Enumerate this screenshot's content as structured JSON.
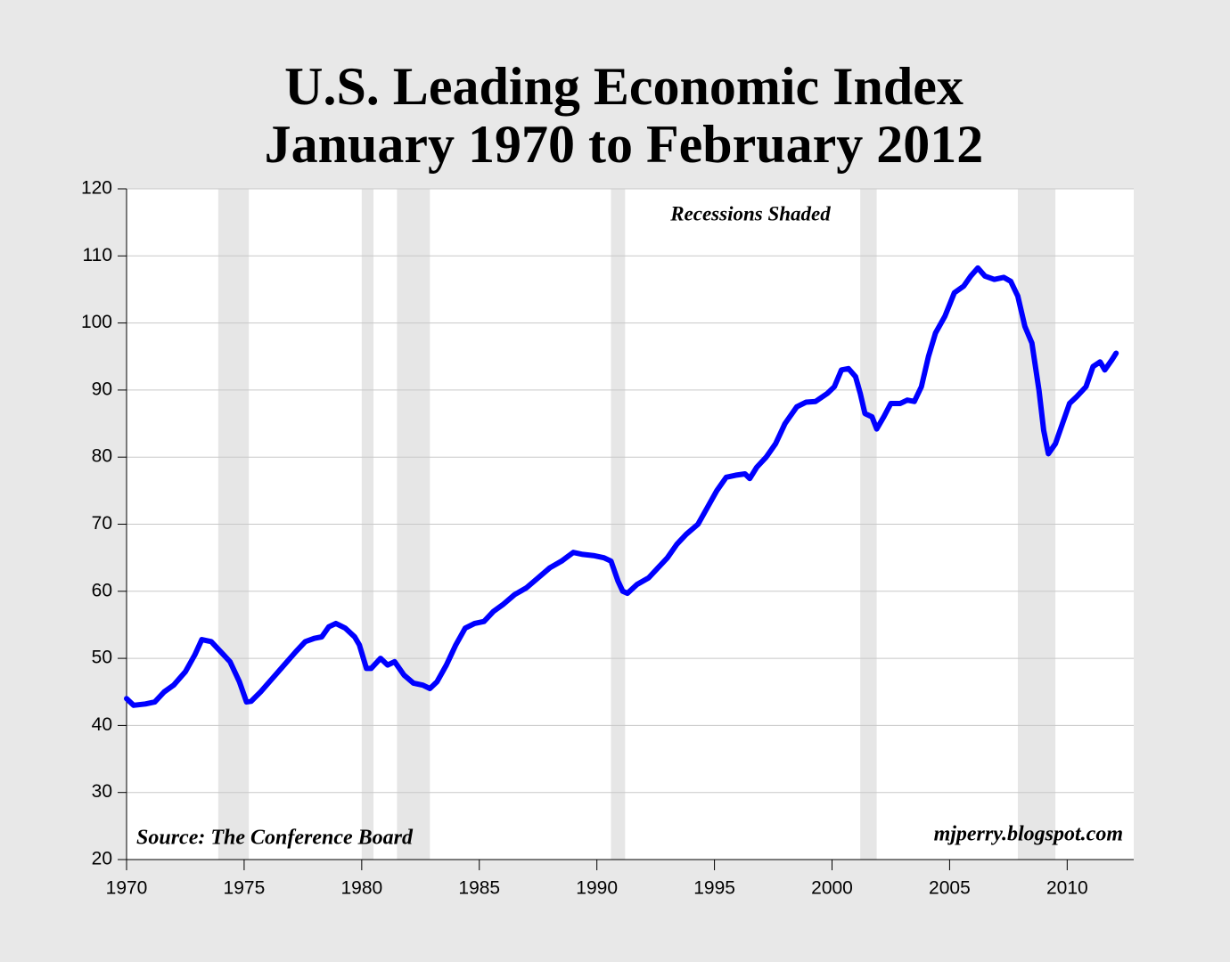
{
  "chart_data": {
    "type": "line",
    "title": "U.S. Leading Economic Index",
    "subtitle": "January 1970 to February 2012",
    "annotations": [
      "Recessions Shaded",
      "Source: The Conference Board",
      "mjperry.blogspot.com"
    ],
    "recessions": [
      [
        1973.9,
        1975.2
      ],
      [
        1980.0,
        1980.5
      ],
      [
        1981.5,
        1982.9
      ],
      [
        1990.6,
        1991.2
      ],
      [
        2001.2,
        2001.9
      ],
      [
        2007.9,
        2009.5
      ]
    ],
    "recession_color": "#e6e6e6",
    "xlim": [
      1970,
      2012.83
    ],
    "xticks": [
      1970,
      1975,
      1980,
      1985,
      1990,
      1995,
      2000,
      2005,
      2010
    ],
    "ylim": [
      20,
      120
    ],
    "yticks": [
      20,
      30,
      40,
      50,
      60,
      70,
      80,
      90,
      100,
      110,
      120
    ],
    "grid": true,
    "x": [
      1970.0,
      1970.3,
      1970.8,
      1971.2,
      1971.6,
      1972.0,
      1972.5,
      1972.9,
      1973.2,
      1973.6,
      1974.0,
      1974.4,
      1974.8,
      1975.1,
      1975.3,
      1975.7,
      1976.2,
      1976.7,
      1977.2,
      1977.6,
      1978.0,
      1978.3,
      1978.6,
      1978.9,
      1979.3,
      1979.7,
      1979.9,
      1980.2,
      1980.4,
      1980.8,
      1981.1,
      1981.4,
      1981.8,
      1982.2,
      1982.6,
      1982.9,
      1983.2,
      1983.6,
      1984.0,
      1984.4,
      1984.8,
      1985.2,
      1985.6,
      1986.0,
      1986.5,
      1987.0,
      1987.5,
      1988.0,
      1988.5,
      1989.0,
      1989.4,
      1989.9,
      1990.3,
      1990.6,
      1990.9,
      1991.1,
      1991.3,
      1991.7,
      1992.2,
      1992.6,
      1993.0,
      1993.4,
      1993.8,
      1994.3,
      1994.7,
      1995.1,
      1995.5,
      1995.9,
      1996.3,
      1996.5,
      1996.8,
      1997.2,
      1997.6,
      1998.0,
      1998.5,
      1998.9,
      1999.3,
      1999.8,
      2000.1,
      2000.4,
      2000.7,
      2001.0,
      2001.2,
      2001.4,
      2001.7,
      2001.9,
      2002.2,
      2002.5,
      2002.9,
      2003.2,
      2003.5,
      2003.8,
      2004.1,
      2004.4,
      2004.8,
      2005.2,
      2005.6,
      2005.9,
      2006.2,
      2006.5,
      2006.9,
      2007.3,
      2007.6,
      2007.9,
      2008.2,
      2008.5,
      2008.8,
      2009.0,
      2009.2,
      2009.5,
      2009.8,
      2010.1,
      2010.4,
      2010.8,
      2011.1,
      2011.4,
      2011.6,
      2011.9,
      2012.08
    ],
    "series": [
      {
        "name": "Leading Economic Index",
        "color": "#0000ff",
        "values": [
          44,
          43,
          43.2,
          43.5,
          45,
          46,
          48,
          50.5,
          52.8,
          52.5,
          51,
          49.5,
          46.5,
          43.5,
          43.6,
          45,
          47,
          49,
          51,
          52.5,
          53,
          53.2,
          54.7,
          55.2,
          54.5,
          53.2,
          52,
          48.5,
          48.5,
          50,
          49,
          49.5,
          47.5,
          46.3,
          46,
          45.5,
          46.5,
          49,
          52,
          54.5,
          55.2,
          55.5,
          57,
          58,
          59.5,
          60.5,
          62,
          63.5,
          64.5,
          65.8,
          65.5,
          65.3,
          65,
          64.5,
          61.5,
          60,
          59.7,
          61,
          62,
          63.5,
          65,
          67,
          68.5,
          70,
          72.5,
          75,
          77,
          77.3,
          77.5,
          76.8,
          78.5,
          80,
          82,
          85,
          87.5,
          88.2,
          88.3,
          89.5,
          90.5,
          93,
          93.2,
          92,
          89.5,
          86.5,
          86,
          84.2,
          86,
          88,
          88,
          88.5,
          88.3,
          90.5,
          95,
          98.5,
          101,
          104.5,
          105.5,
          107,
          108.2,
          107,
          106.5,
          106.8,
          106.2,
          104,
          99.5,
          97,
          90,
          84,
          80.5,
          82,
          85,
          88,
          89,
          90.5,
          93.5,
          94.2,
          93,
          94.5,
          95.5
        ]
      }
    ]
  }
}
